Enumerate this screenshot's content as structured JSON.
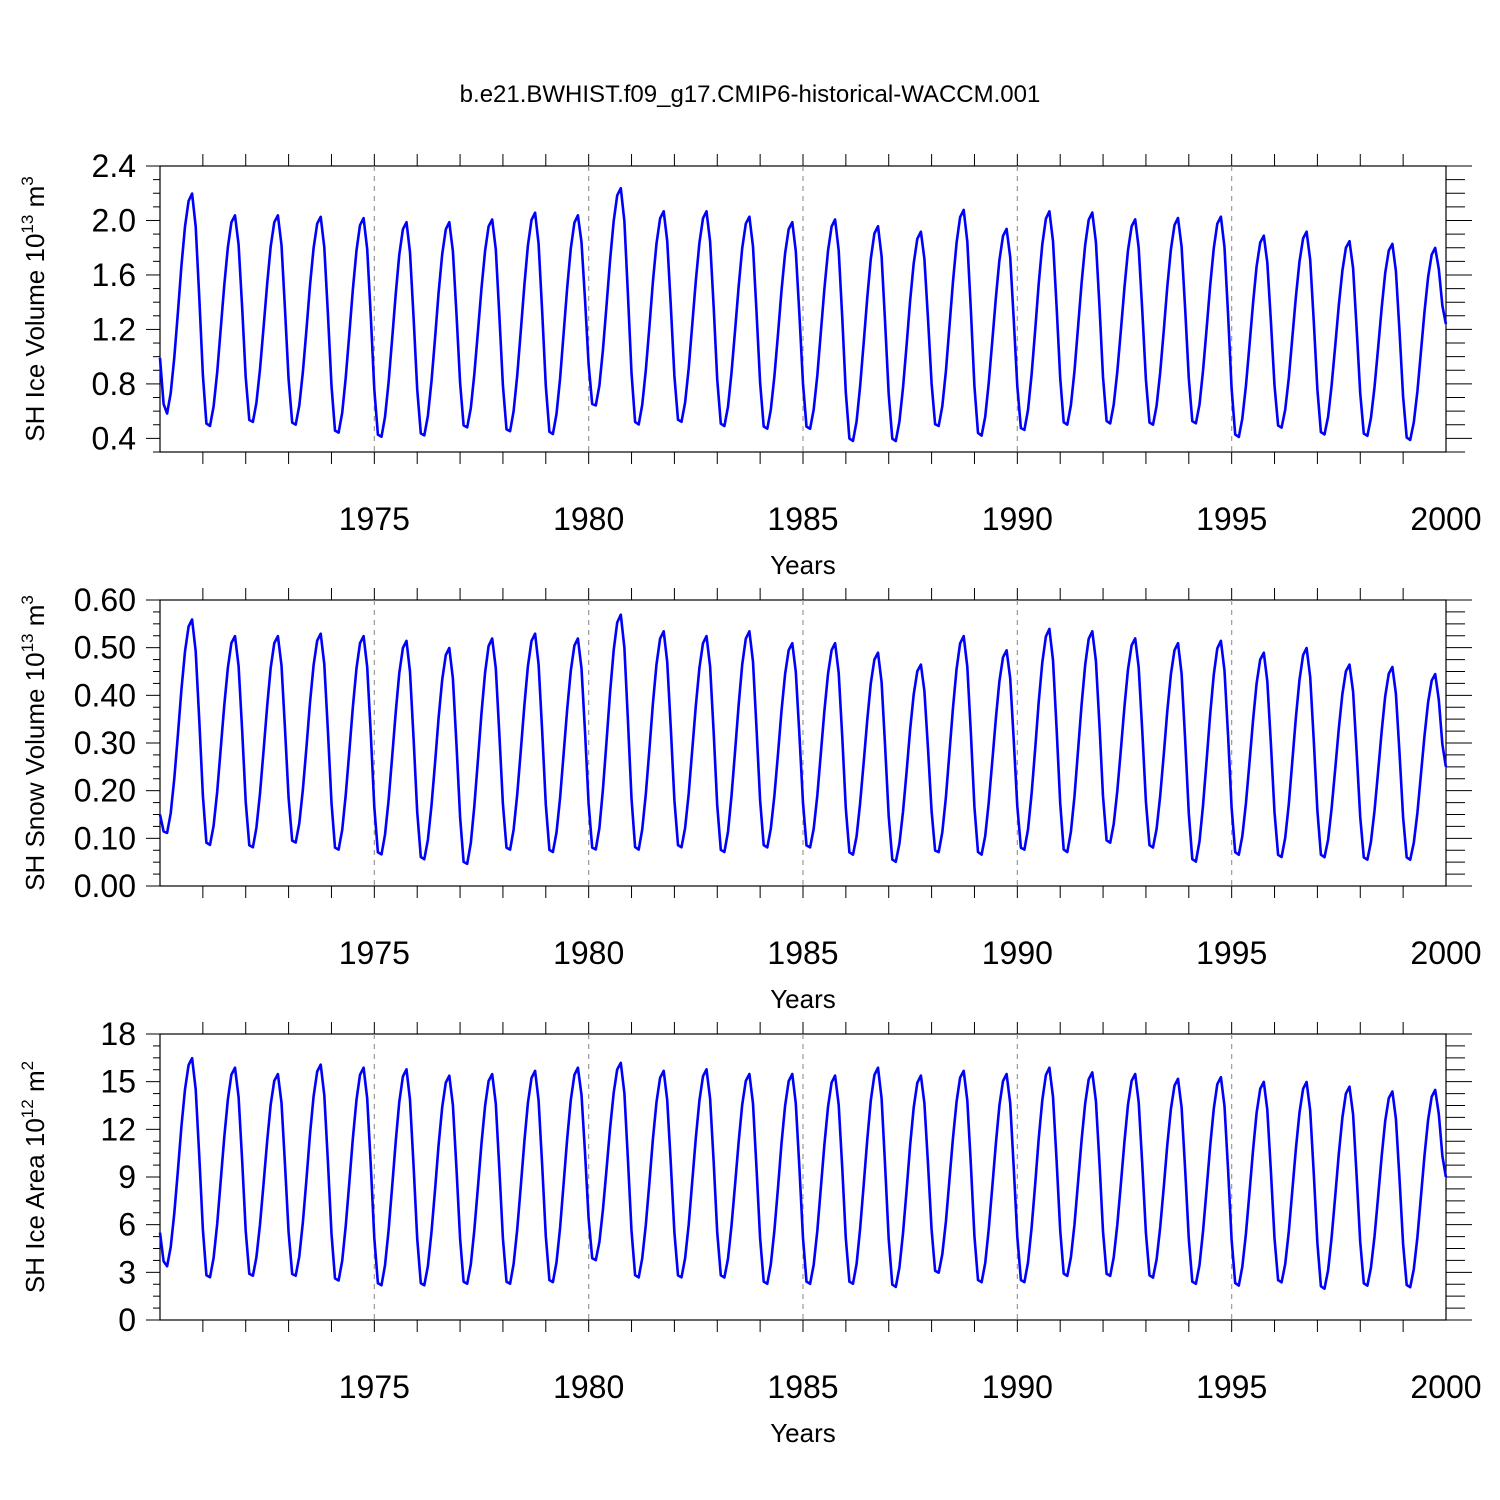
{
  "figure": {
    "title": "b.e21.BWHIST.f09_g17.CMIP6-historical-WACCM.001",
    "line_color": "#0000ff",
    "grid_color": "#999999"
  },
  "chart_data": [
    {
      "type": "line",
      "title": "",
      "xlabel": "Years",
      "ylabel": "SH Ice Volume 10",
      "ylabel_sup": "13",
      "ylabel_unit": " m",
      "ylabel_unit_sup": "3",
      "xlim": [
        1970,
        2000
      ],
      "ylim": [
        0.3,
        2.4
      ],
      "xticks": [
        1975,
        1980,
        1985,
        1990,
        1995,
        2000
      ],
      "xtick_labels": [
        "1975",
        "1980",
        "1985",
        "1990",
        "1995",
        "2000"
      ],
      "yticks": [
        0.4,
        0.8,
        1.2,
        1.6,
        2.0,
        2.4
      ],
      "ytick_labels": [
        "0.4",
        "0.8",
        "1.2",
        "1.6",
        "2.0",
        "2.4"
      ],
      "grid": "vertical dashed at labeled years",
      "series": [
        {
          "name": "SH Ice Volume",
          "x_start": 1970.0,
          "x_step": 0.08333,
          "annual_max": [
            2.2,
            2.04,
            2.04,
            2.03,
            2.02,
            1.99,
            1.99,
            2.01,
            2.06,
            2.04,
            2.24,
            2.07,
            2.07,
            2.03,
            1.99,
            2.01,
            1.96,
            1.92,
            2.08,
            1.94,
            2.07,
            2.06,
            2.01,
            2.02,
            2.03,
            1.89,
            1.92,
            1.85,
            1.83,
            1.8
          ],
          "annual_min": [
            0.56,
            0.47,
            0.5,
            0.48,
            0.42,
            0.39,
            0.4,
            0.46,
            0.43,
            0.41,
            0.62,
            0.48,
            0.5,
            0.47,
            0.45,
            0.45,
            0.36,
            0.36,
            0.47,
            0.4,
            0.44,
            0.48,
            0.49,
            0.48,
            0.49,
            0.39,
            0.46,
            0.41,
            0.4,
            0.37
          ],
          "start_value": 0.99,
          "end_value": 1.24
        }
      ]
    },
    {
      "type": "line",
      "title": "",
      "xlabel": "Years",
      "ylabel": "SH Snow Volume 10",
      "ylabel_sup": "13",
      "ylabel_unit": " m",
      "ylabel_unit_sup": "3",
      "xlim": [
        1970,
        2000
      ],
      "ylim": [
        0.0,
        0.6
      ],
      "xticks": [
        1975,
        1980,
        1985,
        1990,
        1995,
        2000
      ],
      "xtick_labels": [
        "1975",
        "1980",
        "1985",
        "1990",
        "1995",
        "2000"
      ],
      "yticks": [
        0.0,
        0.1,
        0.2,
        0.3,
        0.4,
        0.5,
        0.6
      ],
      "ytick_labels": [
        "0.00",
        "0.10",
        "0.20",
        "0.30",
        "0.40",
        "0.50",
        "0.60"
      ],
      "grid": "vertical dashed at labeled years",
      "series": [
        {
          "name": "SH Snow Volume",
          "x_start": 1970.0,
          "x_step": 0.08333,
          "annual_max": [
            0.56,
            0.525,
            0.525,
            0.53,
            0.525,
            0.515,
            0.5,
            0.52,
            0.53,
            0.52,
            0.57,
            0.535,
            0.525,
            0.535,
            0.51,
            0.51,
            0.49,
            0.465,
            0.525,
            0.495,
            0.54,
            0.535,
            0.52,
            0.51,
            0.515,
            0.49,
            0.5,
            0.465,
            0.46,
            0.445
          ],
          "annual_min": [
            0.105,
            0.08,
            0.075,
            0.085,
            0.07,
            0.06,
            0.05,
            0.04,
            0.07,
            0.065,
            0.07,
            0.07,
            0.075,
            0.065,
            0.075,
            0.075,
            0.06,
            0.045,
            0.065,
            0.06,
            0.07,
            0.065,
            0.085,
            0.075,
            0.045,
            0.06,
            0.055,
            0.055,
            0.05,
            0.05
          ],
          "start_value": 0.15,
          "end_value": 0.25
        }
      ]
    },
    {
      "type": "line",
      "title": "",
      "xlabel": "Years",
      "ylabel": "SH Ice Area 10",
      "ylabel_sup": "12",
      "ylabel_unit": " m",
      "ylabel_unit_sup": "2",
      "xlim": [
        1970,
        2000
      ],
      "ylim": [
        0,
        18
      ],
      "xticks": [
        1975,
        1980,
        1985,
        1990,
        1995,
        2000
      ],
      "xtick_labels": [
        "1975",
        "1980",
        "1985",
        "1990",
        "1995",
        "2000"
      ],
      "yticks": [
        0,
        3,
        6,
        9,
        12,
        15,
        18
      ],
      "ytick_labels": [
        "0",
        "3",
        "6",
        "9",
        "12",
        "15",
        "18"
      ],
      "grid": "vertical dashed at labeled years",
      "series": [
        {
          "name": "SH Ice Area",
          "x_start": 1970.0,
          "x_step": 0.08333,
          "annual_max": [
            16.5,
            15.9,
            15.5,
            16.1,
            15.9,
            15.8,
            15.4,
            15.5,
            15.7,
            15.9,
            16.2,
            15.7,
            15.8,
            15.5,
            15.5,
            15.4,
            15.9,
            15.4,
            15.7,
            15.5,
            15.9,
            15.6,
            15.5,
            15.2,
            15.3,
            15.0,
            15.0,
            14.7,
            14.4,
            14.5
          ],
          "annual_min": [
            3.2,
            2.5,
            2.6,
            2.6,
            2.3,
            2.0,
            2.0,
            2.1,
            2.1,
            2.2,
            3.6,
            2.5,
            2.5,
            2.5,
            2.1,
            2.1,
            2.1,
            1.9,
            2.8,
            2.2,
            2.2,
            2.6,
            2.6,
            2.5,
            2.1,
            2.0,
            2.2,
            1.8,
            2.0,
            1.9
          ],
          "start_value": 5.5,
          "end_value": 9.0
        }
      ]
    }
  ]
}
